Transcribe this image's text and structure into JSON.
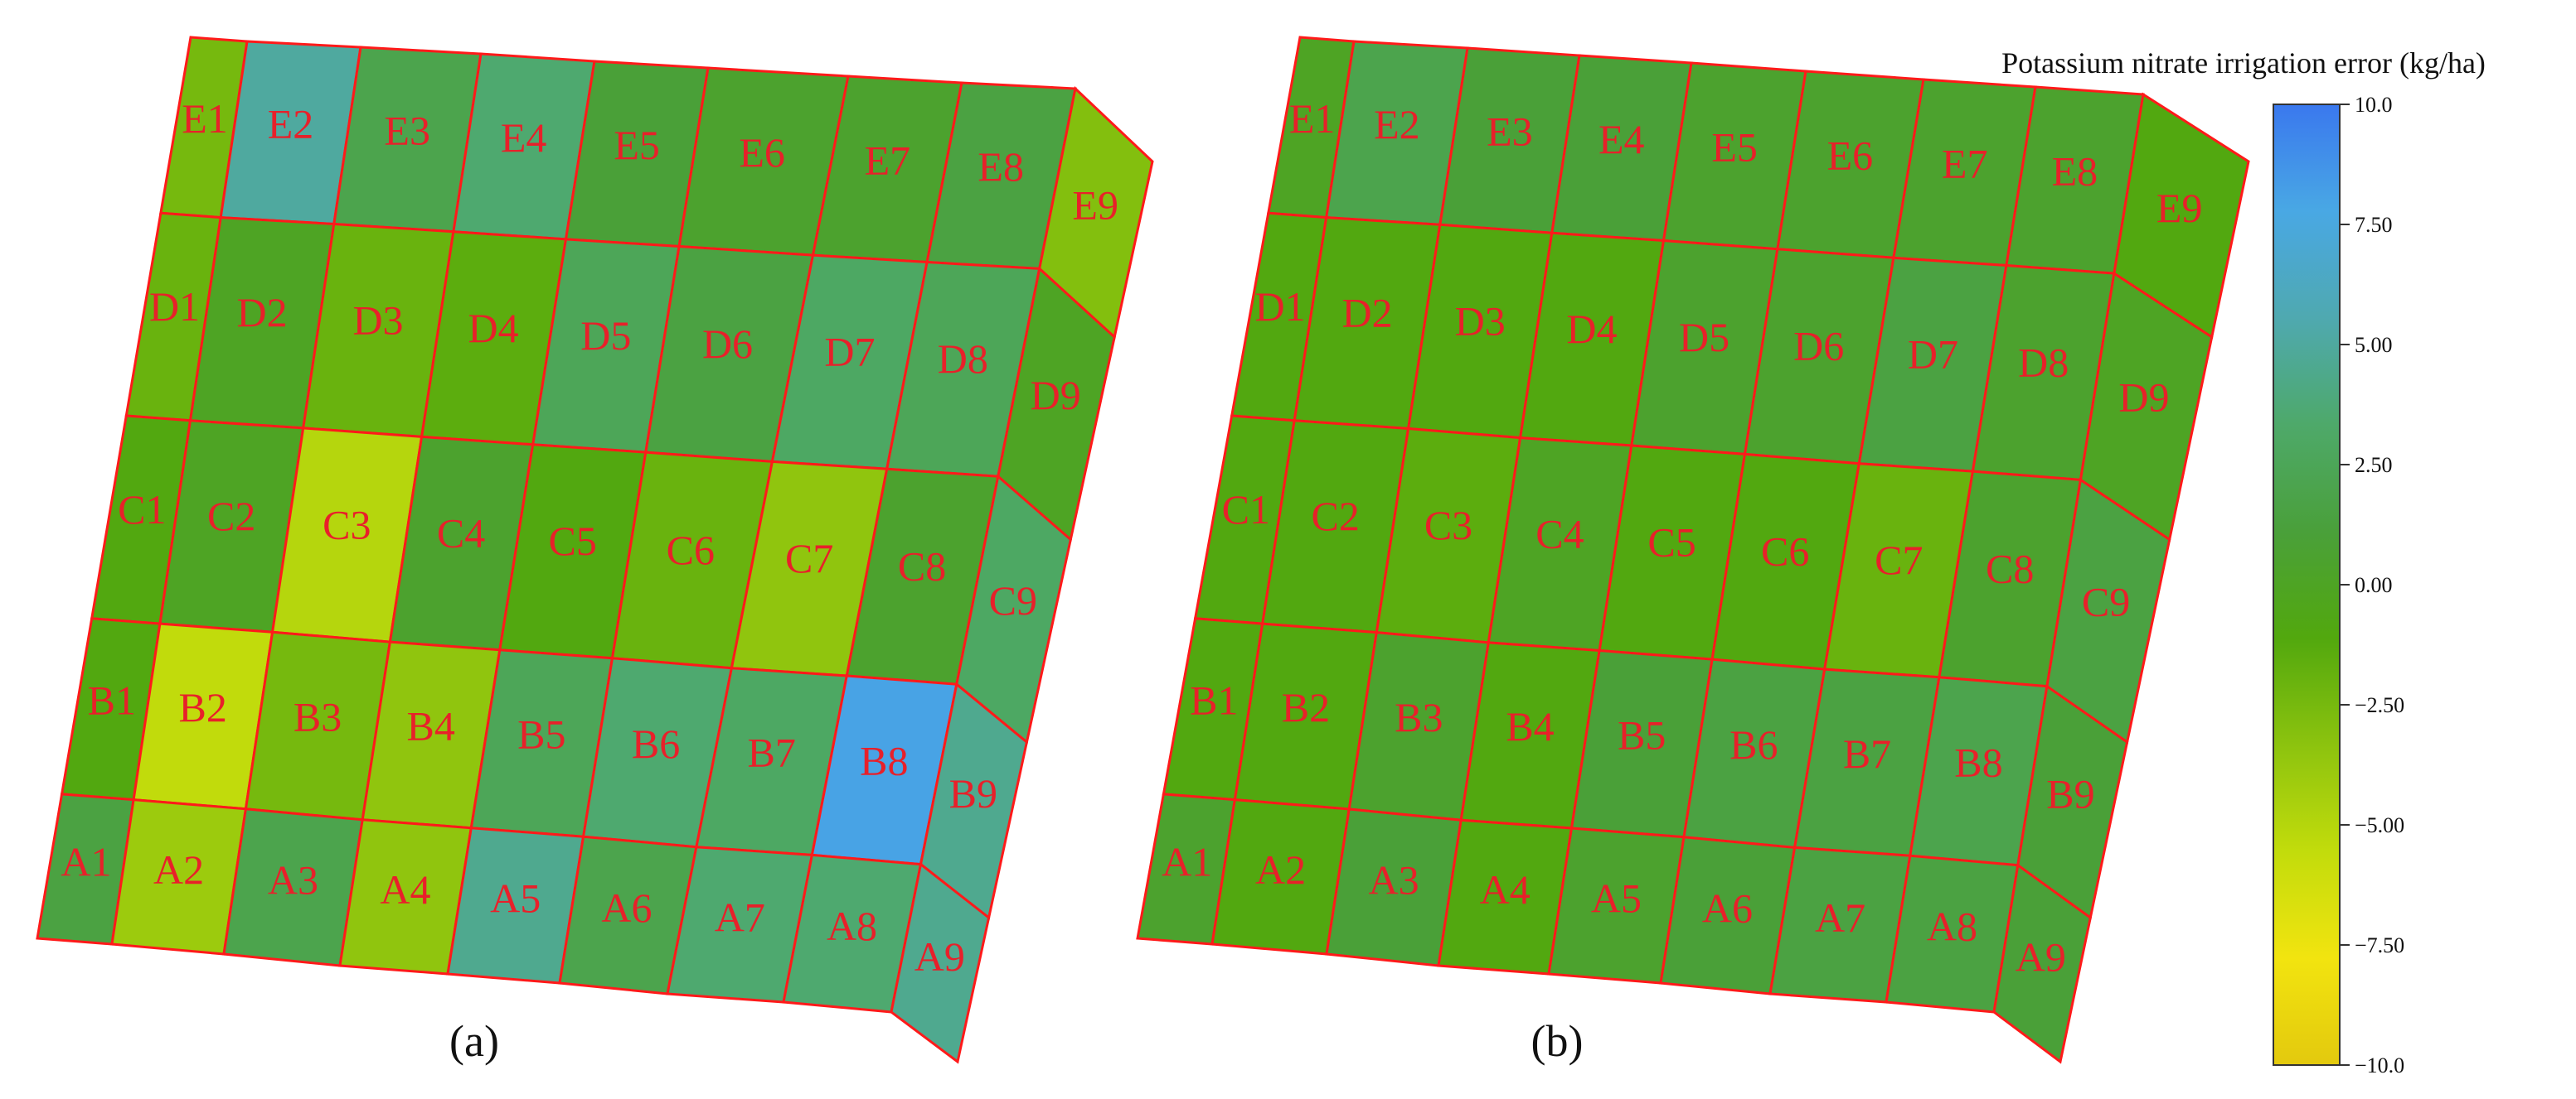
{
  "colorbar": {
    "title": "Potassium nitrate irrigation error (kg/ha)",
    "min": -10.0,
    "max": 10.0,
    "ticks": [
      {
        "value": 10.0,
        "label": "10.0"
      },
      {
        "value": 7.5,
        "label": "7.50"
      },
      {
        "value": 5.0,
        "label": "5.00"
      },
      {
        "value": 2.5,
        "label": "2.50"
      },
      {
        "value": 0.0,
        "label": "0.00"
      },
      {
        "value": -2.5,
        "label": "−2.50"
      },
      {
        "value": -5.0,
        "label": "−5.00"
      },
      {
        "value": -7.5,
        "label": "−7.50"
      },
      {
        "value": -10.0,
        "label": "−10.0"
      }
    ],
    "colors": [
      "#e3c90e",
      "#f2e40f",
      "#c2dc0c",
      "#8cc30e",
      "#52a80e",
      "#4aa03a",
      "#4ea96a",
      "#4fa9b0",
      "#49a8e4",
      "#3a78ee"
    ]
  },
  "chart_data": [
    {
      "type": "heatmap",
      "panel_label": "(a)",
      "rows": [
        "A",
        "B",
        "C",
        "D",
        "E"
      ],
      "columns": [
        "1",
        "2",
        "3",
        "4",
        "5",
        "6",
        "7",
        "8",
        "9"
      ],
      "cells": {
        "A": [
          1.5,
          -4.0,
          2.0,
          -3.5,
          4.5,
          2.0,
          3.5,
          3.5,
          4.5
        ],
        "B": [
          -1.0,
          -5.5,
          -2.5,
          -3.5,
          2.5,
          3.5,
          3.0,
          8.0,
          4.5
        ],
        "C": [
          -1.0,
          0.0,
          -5.0,
          0.5,
          -1.0,
          -2.0,
          -3.5,
          0.5,
          3.0
        ],
        "D": [
          -2.0,
          0.0,
          -2.0,
          -1.5,
          2.5,
          1.5,
          3.0,
          2.5,
          0.0
        ],
        "E": [
          -2.5,
          5.0,
          2.0,
          3.5,
          1.0,
          0.5,
          0.5,
          1.5,
          -3.0
        ]
      }
    },
    {
      "type": "heatmap",
      "panel_label": "(b)",
      "rows": [
        "A",
        "B",
        "C",
        "D",
        "E"
      ],
      "columns": [
        "1",
        "2",
        "3",
        "4",
        "5",
        "6",
        "7",
        "8",
        "9"
      ],
      "cells": {
        "A": [
          0.5,
          -1.0,
          1.0,
          -1.0,
          0.5,
          1.0,
          1.5,
          1.5,
          1.0
        ],
        "B": [
          -1.0,
          -1.0,
          0.5,
          -1.0,
          1.0,
          1.5,
          1.5,
          2.0,
          1.0
        ],
        "C": [
          -1.0,
          -1.0,
          -1.5,
          0.0,
          -1.0,
          -1.0,
          -2.0,
          0.5,
          1.5
        ],
        "D": [
          -1.0,
          -1.0,
          -1.0,
          -1.0,
          0.5,
          0.5,
          1.5,
          0.5,
          0.0
        ],
        "E": [
          0.0,
          2.0,
          1.0,
          1.0,
          0.5,
          0.5,
          0.5,
          0.5,
          -1.0
        ]
      }
    }
  ]
}
